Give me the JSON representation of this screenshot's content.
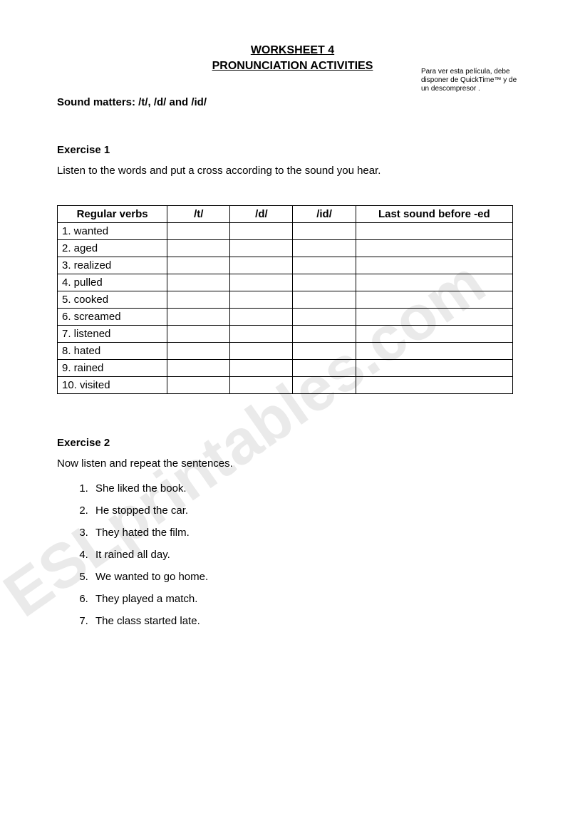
{
  "titles": {
    "line1": "WORKSHEET 4",
    "line2": "PRONUNCIATION ACTIVITIES"
  },
  "side_note": {
    "line1": "Para ver esta película, debe",
    "line2": "disponer de QuickTime™ y de",
    "line3": "un descompresor ."
  },
  "subtitle": "Sound matters: /t/, /d/ and /id/",
  "exercise1": {
    "heading": "Exercise 1",
    "instruction": "Listen to the words and put a cross according to the sound you hear.",
    "table": {
      "headers": [
        "Regular verbs",
        "/t/",
        "/d/",
        "/id/",
        "Last sound before -ed"
      ],
      "rows": [
        "1.  wanted",
        "2.  aged",
        "3.  realized",
        "4.  pulled",
        "5.  cooked",
        "6.  screamed",
        "7.  listened",
        "8.  hated",
        "9.  rained",
        "10. visited"
      ]
    }
  },
  "exercise2": {
    "heading": "Exercise 2",
    "instruction": "Now listen and repeat the sentences.",
    "sentences": [
      "She liked the book.",
      "He stopped the car.",
      "They hated the film.",
      "It rained all day.",
      "We wanted to go home.",
      "They played a match.",
      "The class started late."
    ]
  },
  "watermark": {
    "text": "ESLprintables.com",
    "color": "#d9d9d9",
    "opacity": 0.55,
    "font_size": 88,
    "rotate_deg": -35
  },
  "styling": {
    "page_bg": "#ffffff",
    "text_color": "#000000",
    "font_family": "Comic Sans MS",
    "table_border_color": "#000000"
  }
}
